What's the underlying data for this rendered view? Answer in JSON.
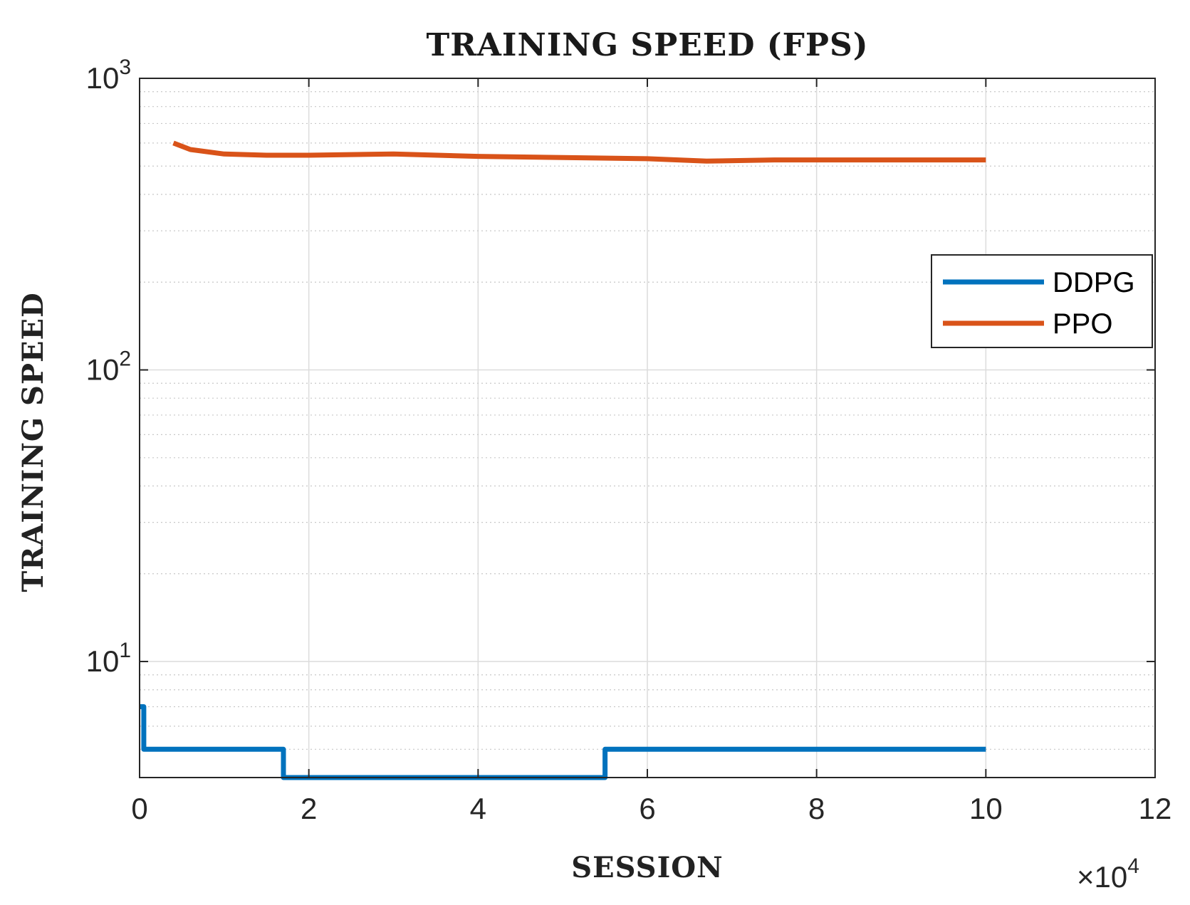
{
  "chart_data": {
    "type": "line",
    "title": "TRAINING SPEED (FPS)",
    "xlabel": "SESSION",
    "ylabel": "TRAINING SPEED",
    "x_multiplier_label": "×10",
    "x_multiplier_exponent": "4",
    "x_scale": 10000,
    "xlim": [
      0,
      120000
    ],
    "ylim": [
      4,
      1000
    ],
    "yscale": "log",
    "grid": true,
    "minor_grid": true,
    "legend_position": "right",
    "x_ticks": [
      {
        "value": 0,
        "label": "0"
      },
      {
        "value": 20000,
        "label": "2"
      },
      {
        "value": 40000,
        "label": "4"
      },
      {
        "value": 60000,
        "label": "6"
      },
      {
        "value": 80000,
        "label": "8"
      },
      {
        "value": 100000,
        "label": "10"
      },
      {
        "value": 120000,
        "label": "12"
      }
    ],
    "y_ticks": [
      {
        "value": 10,
        "base": "10",
        "exp": "1"
      },
      {
        "value": 100,
        "base": "10",
        "exp": "2"
      },
      {
        "value": 1000,
        "base": "10",
        "exp": "3"
      }
    ],
    "series": [
      {
        "name": "DDPG",
        "color": "#0072BD",
        "x": [
          0,
          500,
          500,
          17000,
          17000,
          55000,
          55000,
          100000
        ],
        "y": [
          7,
          7,
          5,
          5,
          4,
          4,
          5,
          5
        ]
      },
      {
        "name": "PPO",
        "color": "#D95319",
        "x": [
          4000,
          6000,
          10000,
          15000,
          20000,
          30000,
          40000,
          50000,
          60000,
          67000,
          75000,
          85000,
          100000
        ],
        "y": [
          600,
          570,
          550,
          545,
          545,
          550,
          540,
          535,
          530,
          520,
          525,
          525,
          525
        ]
      }
    ]
  }
}
